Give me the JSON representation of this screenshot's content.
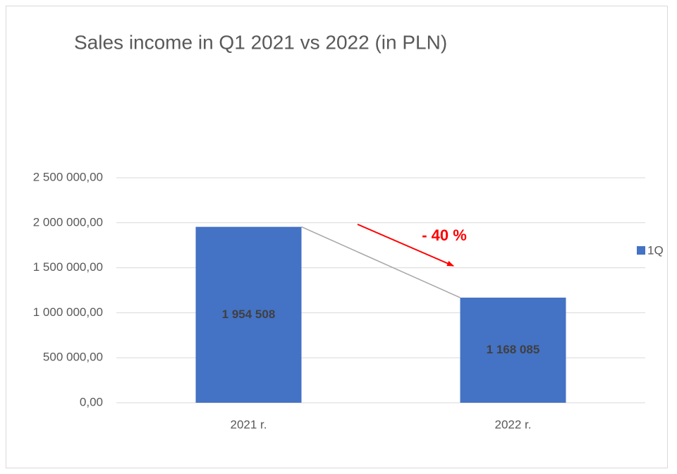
{
  "chart_data": {
    "type": "bar",
    "title": "Sales income in Q1 2021 vs 2022 (in PLN)",
    "categories": [
      "2021 r.",
      "2022 r."
    ],
    "series": [
      {
        "name": "1Q",
        "color": "#4472c4",
        "values": [
          1954508,
          1168085
        ],
        "value_labels": [
          "1 954 508",
          "1 168 085"
        ]
      }
    ],
    "ylim": [
      0,
      2500000
    ],
    "yticks": [
      {
        "value": 0,
        "label": "0,00"
      },
      {
        "value": 500000,
        "label": "500 000,00"
      },
      {
        "value": 1000000,
        "label": "1 000 000,00"
      },
      {
        "value": 1500000,
        "label": "1 500 000,00"
      },
      {
        "value": 2000000,
        "label": "2 000 000,00"
      },
      {
        "value": 2500000,
        "label": "2 500 000,00"
      }
    ],
    "grid": true,
    "legend": "right",
    "annotation": "- 40 %"
  }
}
